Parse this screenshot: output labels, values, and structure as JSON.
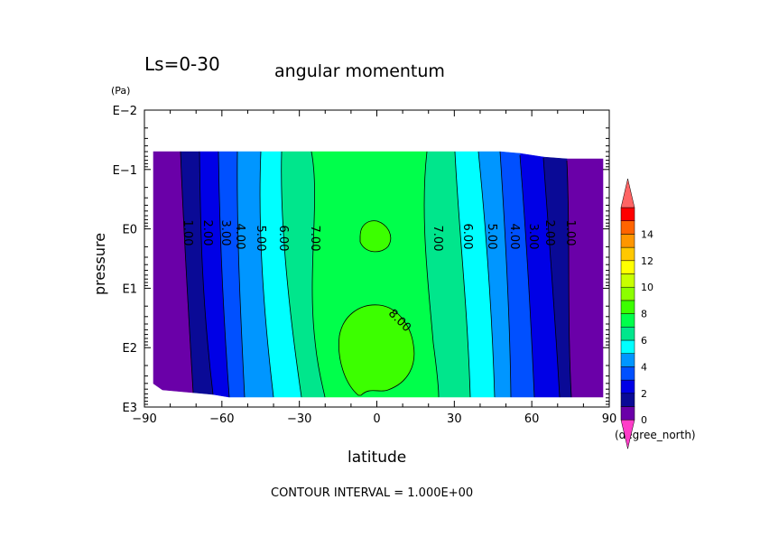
{
  "chart_data": {
    "type": "heatmap",
    "title": "angular momentum",
    "subtitle": "Ls=0-30",
    "xlabel": "latitude",
    "xunit": "(degree_north)",
    "ylabel": "pressure",
    "yunit": "(Pa)",
    "footer": "CONTOUR INTERVAL = 1.000E+00",
    "xlim": [
      -90,
      90
    ],
    "xticks": [
      -90,
      -60,
      -30,
      0,
      30,
      60,
      90
    ],
    "xtick_labels": [
      "−90",
      "−60",
      "−30",
      "0",
      "30",
      "60",
      "90"
    ],
    "y_scale": "log",
    "ylim": [
      1000,
      0.01
    ],
    "ytick_labels": [
      "E−2",
      "E−1",
      "E0",
      "E1",
      "E2",
      "E3"
    ],
    "colorbar": {
      "levels": [
        0,
        1,
        2,
        3,
        4,
        5,
        6,
        7,
        8,
        9,
        10,
        11,
        12,
        13,
        14,
        15
      ],
      "tick_labels": [
        "0",
        "2",
        "4",
        "6",
        "8",
        "10",
        "12",
        "14"
      ],
      "colors": [
        "#6a00a8",
        "#0a0a96",
        "#0000e6",
        "#0050ff",
        "#0096ff",
        "#00ffff",
        "#00e68c",
        "#00ff4b",
        "#3cff00",
        "#8cff00",
        "#c8ff00",
        "#ffff00",
        "#ffc800",
        "#ff9600",
        "#ff6400",
        "#ff0000"
      ],
      "under_color": "#ff3cc8",
      "over_color": "#ff6464"
    },
    "contour_labels": [
      "1.00",
      "2.00",
      "3.00",
      "4.00",
      "5.00",
      "6.00",
      "7.00",
      "8.00",
      "7.00",
      "6.00",
      "5.00",
      "4.00",
      "3.00",
      "2.00",
      "1.00"
    ],
    "contour_boundaries_lat": [
      {
        "value": 1,
        "lat": -76
      },
      {
        "value": 2,
        "lat": -71
      },
      {
        "value": 3,
        "lat": -64
      },
      {
        "value": 4,
        "lat": -57
      },
      {
        "value": 5,
        "lat": -47
      },
      {
        "value": 6,
        "lat": -36
      },
      {
        "value": 7,
        "lat": -25
      },
      {
        "value": 7,
        "lat": 20
      },
      {
        "value": 6,
        "lat": 31
      },
      {
        "value": 5,
        "lat": 40
      },
      {
        "value": 4,
        "lat": 48
      },
      {
        "value": 3,
        "lat": 55
      },
      {
        "value": 2,
        "lat": 63
      },
      {
        "value": 1,
        "lat": 71
      }
    ]
  }
}
